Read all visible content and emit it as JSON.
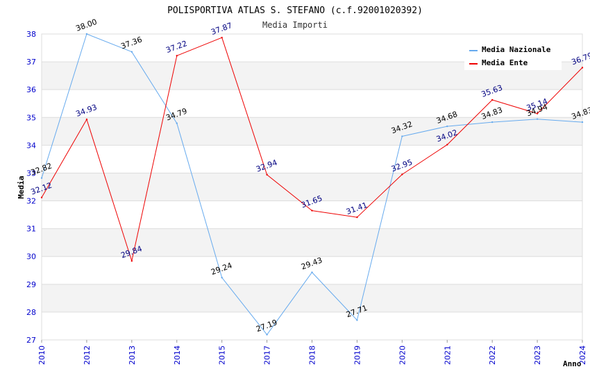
{
  "chart_data": {
    "type": "line",
    "title": "POLISPORTIVA ATLAS S. STEFANO (c.f.92001020392)",
    "subtitle": "Media Importi",
    "xlabel": "Anno",
    "ylabel": "Media",
    "categories": [
      "2010",
      "2012",
      "2013",
      "2014",
      "2015",
      "2017",
      "2018",
      "2019",
      "2020",
      "2021",
      "2022",
      "2023",
      "2024"
    ],
    "ylim": [
      27,
      38
    ],
    "yticks": [
      "27",
      "28",
      "29",
      "30",
      "31",
      "32",
      "33",
      "34",
      "35",
      "36",
      "37",
      "38"
    ],
    "legend_position": "top-right",
    "series": [
      {
        "name": "Media Nazionale",
        "color": "#66aaee",
        "label_color": "#000000",
        "values": [
          32.82,
          38.0,
          37.36,
          34.79,
          29.24,
          27.19,
          29.43,
          27.71,
          34.32,
          34.68,
          34.83,
          34.94,
          34.83
        ],
        "labels": [
          "32.82",
          "38.00",
          "37.36",
          "34.79",
          "29.24",
          "27.19",
          "29.43",
          "27.71",
          "34.32",
          "34.68",
          "34.83",
          "34.94",
          "34.83"
        ]
      },
      {
        "name": "Media Ente",
        "color": "#ee0000",
        "label_color": "#000080",
        "values": [
          32.12,
          34.93,
          29.84,
          37.22,
          37.87,
          32.94,
          31.65,
          31.41,
          32.95,
          34.02,
          35.63,
          35.14,
          36.79
        ],
        "labels": [
          "32.12",
          "34.93",
          "29.84",
          "37.22",
          "37.87",
          "32.94",
          "31.65",
          "31.41",
          "32.95",
          "34.02",
          "35.63",
          "35.14",
          "36.79"
        ]
      }
    ]
  }
}
